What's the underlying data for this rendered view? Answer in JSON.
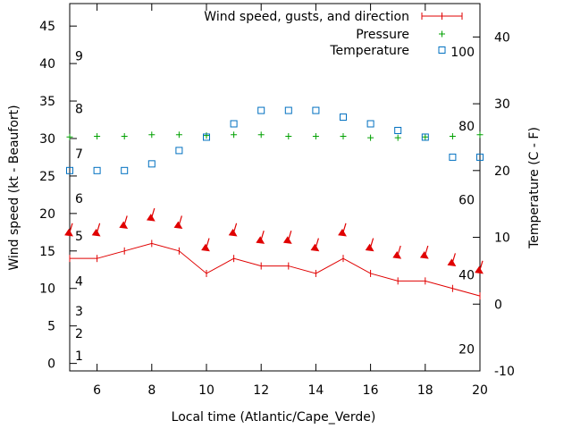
{
  "chart_data": {
    "type": "line",
    "title": "",
    "xlabel": "Local time (Atlantic/Cape_Verde)",
    "ylabel_left": "Wind speed (kt - Beaufort)",
    "ylabel_right": "Temperature (C - F)",
    "xlim": [
      5,
      20
    ],
    "ylim_left": [
      -1,
      48
    ],
    "ylim_right": [
      -10,
      45
    ],
    "x_ticks": [
      6,
      8,
      10,
      12,
      14,
      16,
      18,
      20
    ],
    "y_left_ticks": [
      0,
      5,
      10,
      15,
      20,
      25,
      30,
      35,
      40,
      45
    ],
    "y_right_ticks": [
      -10,
      0,
      10,
      20,
      30,
      40
    ],
    "beaufort_labels": [
      {
        "label": "1",
        "kt": 1
      },
      {
        "label": "2",
        "kt": 4
      },
      {
        "label": "3",
        "kt": 7
      },
      {
        "label": "4",
        "kt": 11
      },
      {
        "label": "5",
        "kt": 17
      },
      {
        "label": "6",
        "kt": 22
      },
      {
        "label": "7",
        "kt": 28
      },
      {
        "label": "8",
        "kt": 34
      },
      {
        "label": "9",
        "kt": 41
      }
    ],
    "fahrenheit_labels": [
      {
        "label": "20",
        "temp_c": -6.7
      },
      {
        "label": "40",
        "temp_c": 4.4
      },
      {
        "label": "60",
        "temp_c": 15.6
      },
      {
        "label": "80",
        "temp_c": 26.7
      },
      {
        "label": "100",
        "temp_c": 37.8
      }
    ],
    "legend_position": "top-right",
    "legend": [
      "Wind speed, gusts, and direction",
      "Pressure",
      "Temperature"
    ],
    "colors": {
      "wind": "#e00000",
      "pressure": "#00a000",
      "temperature": "#0070c0"
    },
    "series": [
      {
        "name": "Wind speed, gusts, and direction",
        "axis": "left",
        "x": [
          5,
          6,
          7,
          8,
          9,
          10,
          11,
          12,
          13,
          14,
          15,
          16,
          17,
          18,
          19,
          20
        ],
        "values": [
          14,
          14,
          15,
          16,
          15,
          12,
          14,
          13,
          13,
          12,
          14,
          12,
          11,
          11,
          10,
          9
        ]
      },
      {
        "name": "Wind gust arrows",
        "axis": "left",
        "x": [
          5,
          6,
          7,
          8,
          9,
          10,
          11,
          12,
          13,
          14,
          15,
          16,
          17,
          18,
          19,
          20
        ],
        "values": [
          17.5,
          17.5,
          18.5,
          19.5,
          18.5,
          15.5,
          17.5,
          16.5,
          16.5,
          15.5,
          17.5,
          15.5,
          14.5,
          14.5,
          13.5,
          12.5
        ]
      },
      {
        "name": "Pressure",
        "axis": "left",
        "x": [
          5,
          6,
          7,
          8,
          9,
          10,
          11,
          12,
          13,
          14,
          15,
          16,
          17,
          18,
          19,
          20
        ],
        "values": [
          30.2,
          30.3,
          30.3,
          30.5,
          30.5,
          30.4,
          30.5,
          30.5,
          30.3,
          30.3,
          30.3,
          30.1,
          30.1,
          30.2,
          30.3,
          30.5
        ]
      },
      {
        "name": "Temperature",
        "axis": "right",
        "x": [
          5,
          6,
          7,
          8,
          9,
          10,
          11,
          12,
          13,
          14,
          15,
          16,
          17,
          18,
          19,
          20
        ],
        "values": [
          20,
          20,
          20,
          21,
          23,
          25,
          27,
          29,
          29,
          29,
          28,
          27,
          26,
          25,
          22,
          22
        ]
      }
    ]
  }
}
